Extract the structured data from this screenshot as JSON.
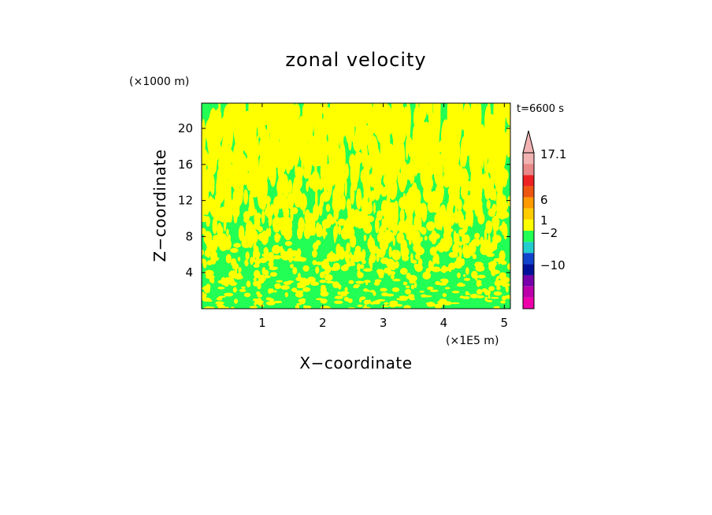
{
  "chart_data": {
    "type": "heatmap",
    "title": "zonal velocity",
    "xlabel": "X−coordinate",
    "ylabel": "Z−coordinate",
    "x_unit_label": "(×1E5 m)",
    "y_unit_label": "(×1000 m)",
    "time_label": "t=6600 s",
    "x_ticks": [
      "1",
      "2",
      "3",
      "4",
      "5"
    ],
    "x_tick_values": [
      1,
      2,
      3,
      4,
      5
    ],
    "y_ticks": [
      "4",
      "8",
      "12",
      "16",
      "20"
    ],
    "y_tick_values": [
      4,
      8,
      12,
      16,
      20
    ],
    "xlim": [
      0,
      5.1
    ],
    "ylim": [
      0,
      22.8
    ],
    "field_colors": {
      "low": "#22ff55",
      "high": "#ffff00"
    },
    "colorbar": {
      "labels": [
        {
          "text": "17.1",
          "value": 17.1
        },
        {
          "text": "6",
          "value": 6
        },
        {
          "text": "1",
          "value": 1
        },
        {
          "text": "−2",
          "value": -2
        },
        {
          "text": "−10",
          "value": -10
        }
      ],
      "colors_top_to_bottom": [
        "#f2b2b2",
        "#e88888",
        "#ee2222",
        "#ee5511",
        "#ff9900",
        "#ffcc00",
        "#ffff00",
        "#22ff55",
        "#22cccc",
        "#1144cc",
        "#001199",
        "#7700aa",
        "#bb00aa",
        "#ee00aa"
      ],
      "over_triangle_color": "#f2b2b2"
    }
  }
}
